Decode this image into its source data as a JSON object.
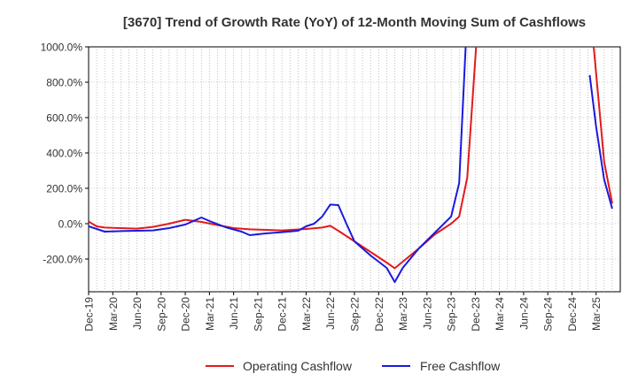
{
  "chart_data": {
    "type": "line",
    "title": "[3670]  Trend of Growth Rate (YoY) of 12-Month Moving Sum of Cashflows",
    "x_tick_labels": [
      "Dec-19",
      "Mar-20",
      "Jun-20",
      "Sep-20",
      "Dec-20",
      "Mar-21",
      "Jun-21",
      "Sep-21",
      "Dec-21",
      "Mar-22",
      "Jun-22",
      "Sep-22",
      "Dec-22",
      "Mar-23",
      "Jun-23",
      "Sep-23",
      "Dec-23",
      "Mar-24",
      "Jun-24",
      "Sep-24",
      "Dec-24",
      "Mar-25"
    ],
    "y_ticks": [
      1000,
      800,
      600,
      400,
      200,
      0,
      -200
    ],
    "y_tick_labels": [
      "1000.0%",
      "800.0%",
      "600.0%",
      "400.0%",
      "200.0%",
      "0.0%",
      "-200.0%"
    ],
    "ylim": [
      -385,
      1000
    ],
    "grid": true,
    "legend_position": "bottom-center",
    "series": [
      {
        "name": "Operating Cashflow",
        "color": "#e31a1c",
        "points": [
          {
            "x": 0,
            "y": 12
          },
          {
            "x": 1,
            "y": -15
          },
          {
            "x": 2,
            "y": -22
          },
          {
            "x": 4,
            "y": -25
          },
          {
            "x": 6,
            "y": -28
          },
          {
            "x": 8,
            "y": -18
          },
          {
            "x": 10,
            "y": 0
          },
          {
            "x": 12,
            "y": 22
          },
          {
            "x": 14,
            "y": 10
          },
          {
            "x": 16,
            "y": -8
          },
          {
            "x": 18,
            "y": -25
          },
          {
            "x": 20,
            "y": -32
          },
          {
            "x": 22,
            "y": -35
          },
          {
            "x": 24,
            "y": -38
          },
          {
            "x": 27,
            "y": -30
          },
          {
            "x": 29,
            "y": -22
          },
          {
            "x": 30,
            "y": -12
          },
          {
            "x": 31,
            "y": -40
          },
          {
            "x": 33,
            "y": -100
          },
          {
            "x": 35,
            "y": -160
          },
          {
            "x": 37,
            "y": -220
          },
          {
            "x": 38,
            "y": -252
          },
          {
            "x": 39,
            "y": -215
          },
          {
            "x": 41,
            "y": -140
          },
          {
            "x": 43,
            "y": -60
          },
          {
            "x": 45,
            "y": 0
          },
          {
            "x": 46,
            "y": 40
          },
          {
            "x": 47,
            "y": 260
          },
          {
            "x": 48.1,
            "y": 1000
          },
          {
            "x": 62.7,
            "y": 1000
          },
          {
            "x": 63.3,
            "y": 700
          },
          {
            "x": 64,
            "y": 350
          },
          {
            "x": 65,
            "y": 115
          }
        ]
      },
      {
        "name": "Free Cashflow",
        "color": "#1a1adc",
        "points": [
          {
            "x": 0,
            "y": -15
          },
          {
            "x": 2,
            "y": -45
          },
          {
            "x": 4,
            "y": -42
          },
          {
            "x": 6,
            "y": -40
          },
          {
            "x": 8,
            "y": -38
          },
          {
            "x": 10,
            "y": -25
          },
          {
            "x": 12,
            "y": -5
          },
          {
            "x": 14,
            "y": 35
          },
          {
            "x": 15,
            "y": 15
          },
          {
            "x": 17,
            "y": -20
          },
          {
            "x": 19,
            "y": -45
          },
          {
            "x": 20,
            "y": -65
          },
          {
            "x": 22,
            "y": -55
          },
          {
            "x": 24,
            "y": -48
          },
          {
            "x": 26,
            "y": -40
          },
          {
            "x": 27,
            "y": -15
          },
          {
            "x": 28,
            "y": 0
          },
          {
            "x": 29,
            "y": 40
          },
          {
            "x": 30,
            "y": 108
          },
          {
            "x": 31,
            "y": 105
          },
          {
            "x": 32,
            "y": 0
          },
          {
            "x": 33,
            "y": -100
          },
          {
            "x": 35,
            "y": -180
          },
          {
            "x": 37,
            "y": -250
          },
          {
            "x": 38,
            "y": -330
          },
          {
            "x": 39,
            "y": -250
          },
          {
            "x": 41,
            "y": -140
          },
          {
            "x": 43,
            "y": -50
          },
          {
            "x": 45,
            "y": 40
          },
          {
            "x": 46,
            "y": 230
          },
          {
            "x": 46.8,
            "y": 1000
          },
          {
            "x": 62.2,
            "y": 840
          },
          {
            "x": 63,
            "y": 550
          },
          {
            "x": 64,
            "y": 250
          },
          {
            "x": 65,
            "y": 85
          }
        ]
      }
    ],
    "segments": {
      "Operating Cashflow": [
        [
          0,
          28
        ],
        [
          29,
          32
        ]
      ],
      "Free Cashflow": [
        [
          0,
          30
        ],
        [
          31,
          34
        ]
      ]
    }
  }
}
